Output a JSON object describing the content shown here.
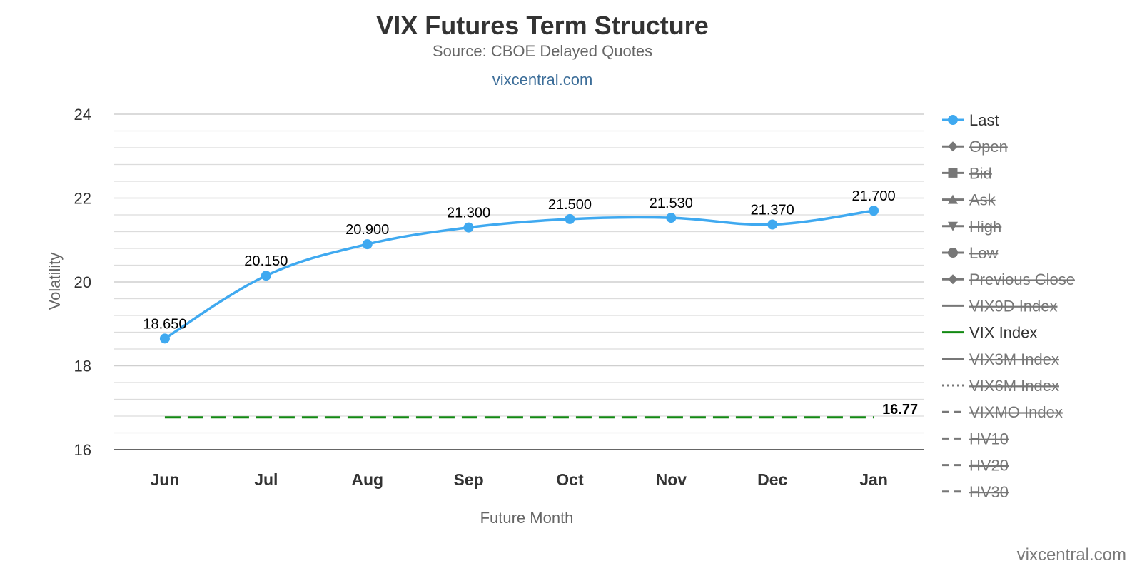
{
  "header": {
    "title": "VIX Futures Term Structure",
    "subtitle": "Source: CBOE Delayed Quotes",
    "link": "vixcentral.com"
  },
  "credit": "vixcentral.com",
  "chart_data": {
    "type": "line",
    "title": "VIX Futures Term Structure",
    "subtitle": "Source: CBOE Delayed Quotes",
    "xlabel": "Future Month",
    "ylabel": "Volatility",
    "categories": [
      "Jun",
      "Jul",
      "Aug",
      "Sep",
      "Oct",
      "Nov",
      "Dec",
      "Jan"
    ],
    "ylim": [
      16,
      24
    ],
    "yticks": [
      16,
      18,
      20,
      22,
      24
    ],
    "grid": true,
    "legend_position": "right",
    "series": [
      {
        "name": "Last",
        "values": [
          18.65,
          20.15,
          20.9,
          21.3,
          21.5,
          21.53,
          21.37,
          21.7
        ],
        "labels": [
          "18.650",
          "20.150",
          "20.900",
          "21.300",
          "21.500",
          "21.530",
          "21.370",
          "21.700"
        ],
        "color": "#3fa9f0",
        "style": "smooth-line-markers"
      },
      {
        "name": "VIX Index",
        "values": [
          16.77,
          16.77,
          16.77,
          16.77,
          16.77,
          16.77,
          16.77,
          16.77
        ],
        "end_label": "16.77",
        "color": "#138a13",
        "style": "dashed"
      }
    ],
    "legend": [
      {
        "name": "Last",
        "active": true,
        "symbol": "circle",
        "line": "solid",
        "color": "#3fa9f0"
      },
      {
        "name": "Open",
        "active": false,
        "symbol": "diamond",
        "line": "solid"
      },
      {
        "name": "Bid",
        "active": false,
        "symbol": "square",
        "line": "solid"
      },
      {
        "name": "Ask",
        "active": false,
        "symbol": "triangle-up",
        "line": "solid"
      },
      {
        "name": "High",
        "active": false,
        "symbol": "triangle-down",
        "line": "solid"
      },
      {
        "name": "Low",
        "active": false,
        "symbol": "circle",
        "line": "solid"
      },
      {
        "name": "Previous Close",
        "active": false,
        "symbol": "diamond",
        "line": "solid"
      },
      {
        "name": "VIX9D Index",
        "active": false,
        "symbol": "none",
        "line": "solid"
      },
      {
        "name": "VIX Index",
        "active": true,
        "symbol": "none",
        "line": "solid",
        "color": "#138a13"
      },
      {
        "name": "VIX3M Index",
        "active": false,
        "symbol": "none",
        "line": "solid"
      },
      {
        "name": "VIX6M Index",
        "active": false,
        "symbol": "none",
        "line": "dotted"
      },
      {
        "name": "VIXMO Index",
        "active": false,
        "symbol": "none",
        "line": "dashed"
      },
      {
        "name": "HV10",
        "active": false,
        "symbol": "none",
        "line": "dashed"
      },
      {
        "name": "HV20",
        "active": false,
        "symbol": "none",
        "line": "dashed"
      },
      {
        "name": "HV30",
        "active": false,
        "symbol": "none",
        "line": "dashed"
      }
    ],
    "colors": {
      "inactive": "#777777",
      "active_text": "#333333"
    }
  }
}
